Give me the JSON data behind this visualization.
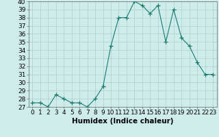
{
  "x": [
    0,
    1,
    2,
    3,
    4,
    5,
    6,
    7,
    8,
    9,
    10,
    11,
    12,
    13,
    14,
    15,
    16,
    17,
    18,
    19,
    20,
    21,
    22,
    23
  ],
  "y": [
    27.5,
    27.5,
    27.0,
    28.5,
    28.0,
    27.5,
    27.5,
    27.0,
    28.0,
    29.5,
    34.5,
    38.0,
    38.0,
    40.0,
    39.5,
    38.5,
    39.5,
    35.0,
    39.0,
    35.5,
    34.5,
    32.5,
    31.0,
    31.0
  ],
  "line_color": "#1a7a6e",
  "marker": "+",
  "marker_size": 4,
  "bg_color": "#ceecea",
  "grid_color": "#aacfcc",
  "xlabel": "Humidex (Indice chaleur)",
  "ylim": [
    27,
    40
  ],
  "xlim": [
    -0.5,
    23.5
  ],
  "yticks": [
    27,
    28,
    29,
    30,
    31,
    32,
    33,
    34,
    35,
    36,
    37,
    38,
    39,
    40
  ],
  "xticks": [
    0,
    1,
    2,
    3,
    4,
    5,
    6,
    7,
    8,
    9,
    10,
    11,
    12,
    13,
    14,
    15,
    16,
    17,
    18,
    19,
    20,
    21,
    22,
    23
  ],
  "tick_fontsize": 6.5,
  "xlabel_fontsize": 7.5
}
